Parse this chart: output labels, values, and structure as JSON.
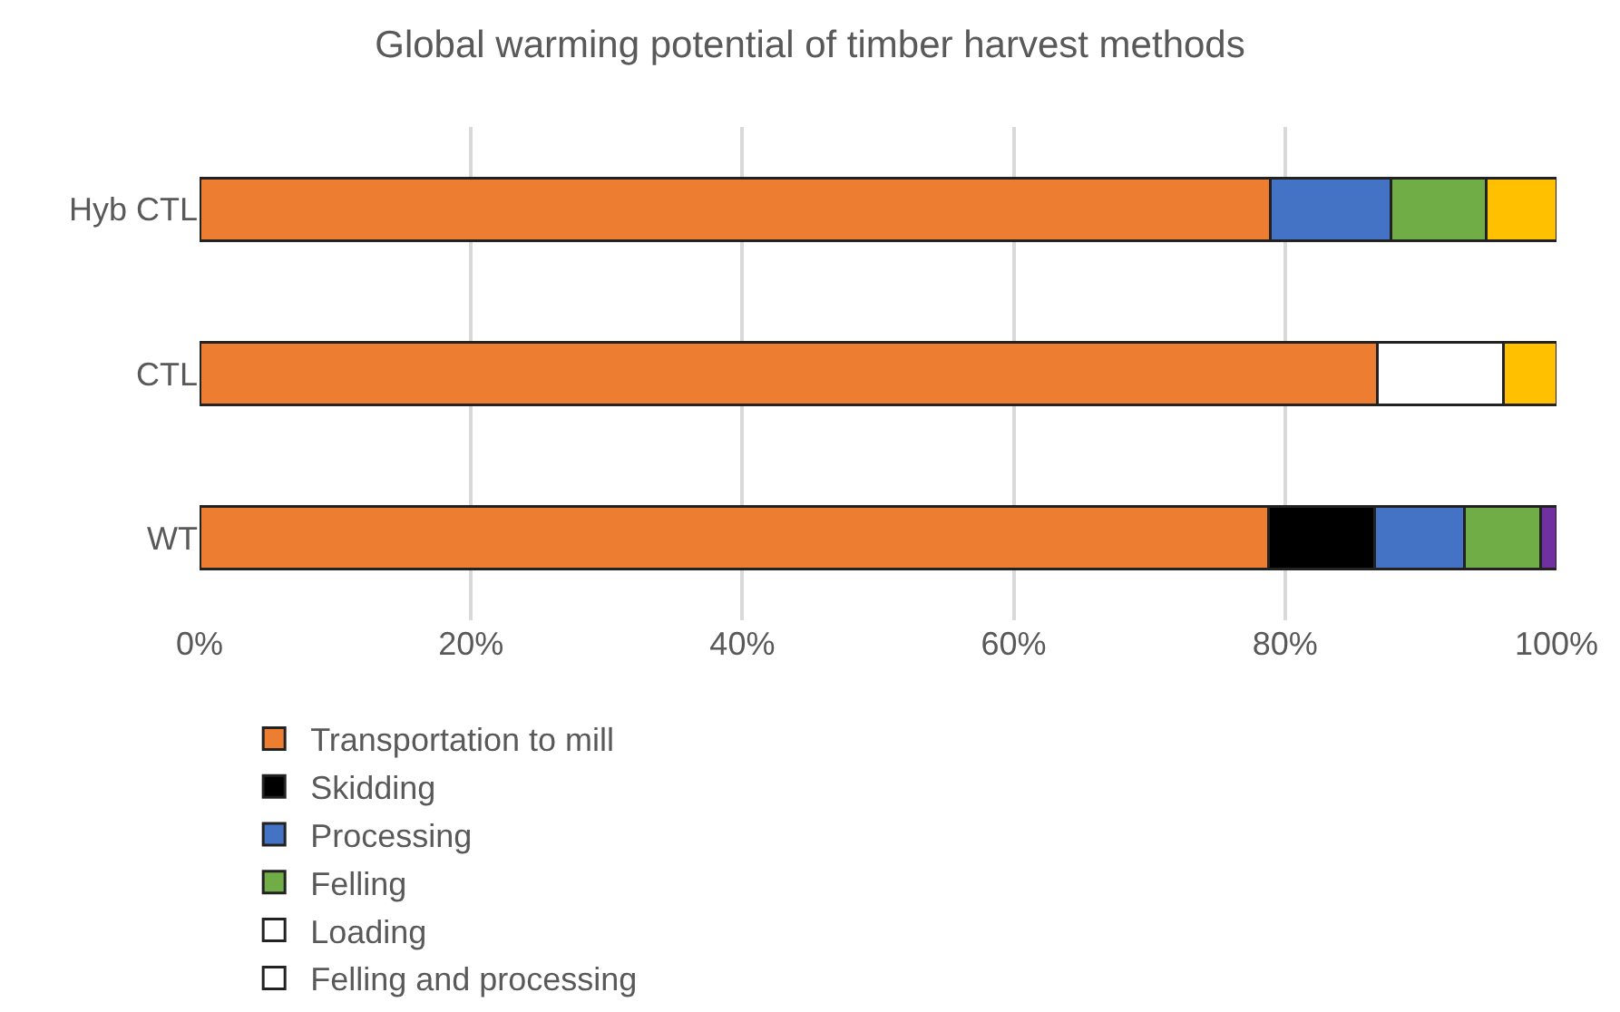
{
  "chart_data": {
    "type": "bar",
    "orientation": "horizontal",
    "stacked": true,
    "title": "Global warming potential of timber harvest methods",
    "categories": [
      "Hyb CTL",
      "CTL",
      "WT"
    ],
    "series": [
      {
        "name": "Transportation to mill",
        "color": "#ed7d31",
        "values": [
          78.9,
          86.8,
          78.8
        ]
      },
      {
        "name": "Skidding",
        "color": "#000000",
        "values": [
          null,
          null,
          7.8
        ]
      },
      {
        "name": "Processing",
        "color": "#4472c4",
        "values": [
          8.9,
          null,
          6.6
        ]
      },
      {
        "name": "Felling",
        "color": "#70ad47",
        "values": [
          7.0,
          null,
          5.6
        ]
      },
      {
        "name": "Loading",
        "color": "#ffffff",
        "values": [
          null,
          null,
          null
        ]
      },
      {
        "name": "Felling and processing",
        "color": "#ffffff",
        "values": [
          null,
          9.3,
          null
        ]
      },
      {
        "color": "#ffc000",
        "values": [
          5.2,
          3.9,
          null
        ]
      },
      {
        "color": "#7030a0",
        "values": [
          null,
          null,
          1.2
        ]
      }
    ],
    "xlim": [
      0,
      100
    ],
    "xticks": [
      {
        "value": 0,
        "label": "0%"
      },
      {
        "value": 20,
        "label": "20%"
      },
      {
        "value": 40,
        "label": "40%"
      },
      {
        "value": 60,
        "label": "60%"
      },
      {
        "value": 80,
        "label": "80%"
      },
      {
        "value": 100,
        "label": "100%"
      }
    ],
    "grid": "x",
    "legend": "bottom"
  }
}
